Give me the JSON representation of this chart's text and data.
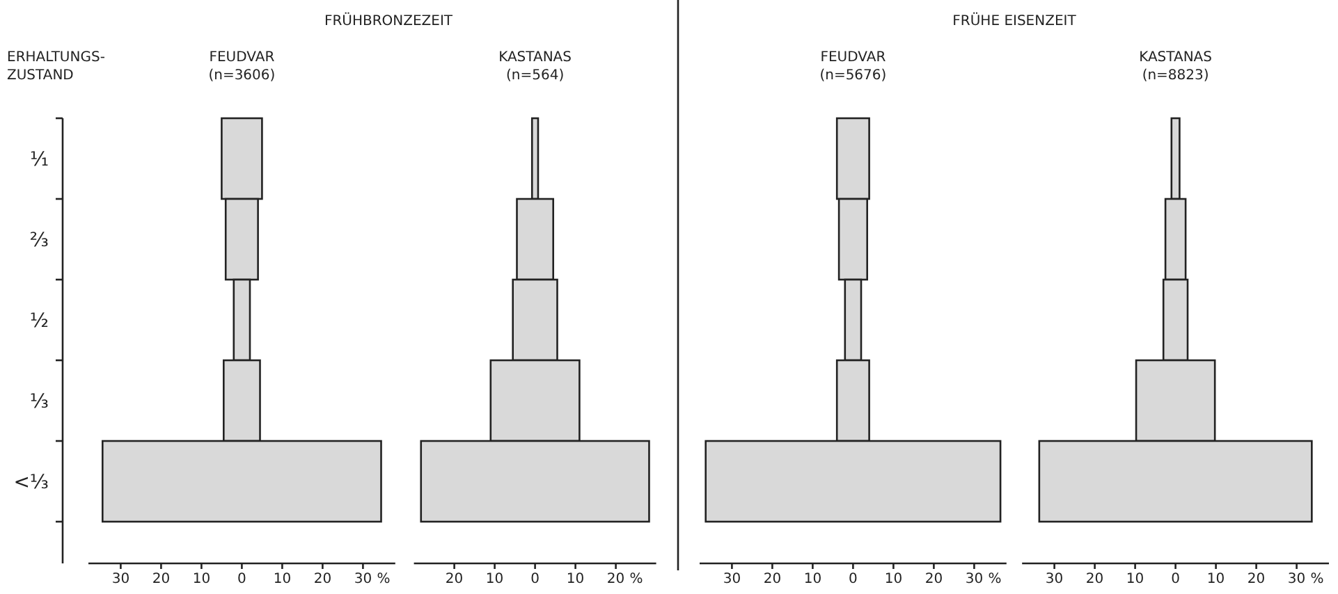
{
  "chart_data": [
    {
      "type": "bar",
      "orientation": "horizontal",
      "title": "FEUDVAR",
      "subtitle": "(n=3606)",
      "ylabel": "ERHALTUNGS-\nZUSTAND",
      "xlabel": "%",
      "annotations": [
        "FRÜHBRONZEZEIT"
      ],
      "categories": [
        "¹⁄₁",
        "⅔",
        "½",
        "⅓",
        "<⅓"
      ],
      "series": [
        {
          "color": "#d9d9d9",
          "values": [
            10,
            8,
            4,
            9,
            69
          ],
          "base": [
            -5,
            -4,
            -2,
            -4.5,
            -34.5
          ]
        }
      ],
      "xlim": [
        -38,
        38
      ],
      "xticks": [
        {
          "value": -30,
          "label": "30"
        },
        {
          "value": -20,
          "label": "20"
        },
        {
          "value": -10,
          "label": "10"
        },
        0,
        10,
        20,
        30
      ]
    },
    {
      "type": "bar",
      "orientation": "horizontal",
      "title": "KASTANAS",
      "subtitle": "(n=564)",
      "xlabel": "%",
      "categories": [
        null,
        null,
        null,
        null,
        null
      ],
      "series": [
        {
          "color": "#d9d9d9",
          "values": [
            1.5,
            9,
            11,
            22,
            56.5
          ],
          "base": [
            -0.75,
            -4.5,
            -5.5,
            -11,
            -28.25
          ]
        }
      ],
      "xlim": [
        -30,
        30
      ],
      "xticks": [
        {
          "value": -20,
          "label": "20"
        },
        {
          "value": -10,
          "label": "10"
        },
        0,
        10,
        20
      ],
      "tick_labels": "x"
    },
    {
      "type": "bar",
      "orientation": "horizontal",
      "title": "FEUDVAR",
      "subtitle": "(n=5676)",
      "xlabel": "%",
      "annotations": [
        "FRÜHE EISENZEIT"
      ],
      "categories": [
        null,
        null,
        null,
        null,
        null
      ],
      "series": [
        {
          "color": "#d9d9d9",
          "values": [
            8,
            7,
            4,
            8,
            73
          ],
          "base": [
            -4,
            -3.5,
            -2,
            -4,
            -36.5
          ]
        }
      ],
      "xlim": [
        -38,
        38
      ],
      "xticks": [
        {
          "value": -30,
          "label": "30"
        },
        {
          "value": -20,
          "label": "20"
        },
        {
          "value": -10,
          "label": "10"
        },
        0,
        10,
        20,
        30
      ],
      "tick_labels": "x"
    },
    {
      "type": "bar",
      "orientation": "horizontal",
      "title": "KASTANAS",
      "subtitle": "(n=8823)",
      "xlabel": "%",
      "categories": [
        null,
        null,
        null,
        null,
        null
      ],
      "series": [
        {
          "color": "#d9d9d9",
          "values": [
            2,
            5,
            6,
            19.5,
            67.5
          ],
          "base": [
            -1,
            -2.5,
            -3,
            -9.75,
            -33.75
          ]
        }
      ],
      "xlim": [
        -38,
        38
      ],
      "xticks": [
        {
          "value": -30,
          "label": "30"
        },
        {
          "value": -20,
          "label": "20"
        },
        {
          "value": -10,
          "label": "10"
        },
        0,
        10,
        20,
        30
      ],
      "tick_labels": "x"
    }
  ]
}
